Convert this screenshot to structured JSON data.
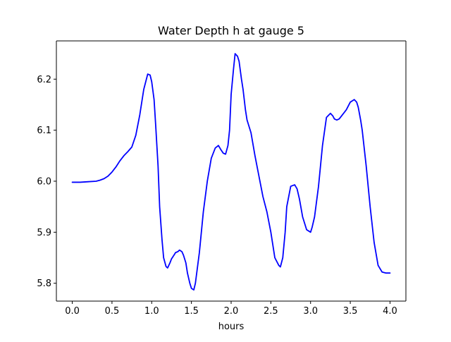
{
  "chart_data": {
    "type": "line",
    "title": "Water Depth h at gauge 5",
    "xlabel": "hours",
    "ylabel": "",
    "xlim": [
      -0.2,
      4.2
    ],
    "ylim": [
      5.765,
      6.275
    ],
    "xticks": [
      0.0,
      0.5,
      1.0,
      1.5,
      2.0,
      2.5,
      3.0,
      3.5,
      4.0
    ],
    "xtick_labels": [
      "0.0",
      "0.5",
      "1.0",
      "1.5",
      "2.0",
      "2.5",
      "3.0",
      "3.5",
      "4.0"
    ],
    "yticks": [
      5.8,
      5.9,
      6.0,
      6.1,
      6.2
    ],
    "ytick_labels": [
      "5.8",
      "5.9",
      "6.0",
      "6.1",
      "6.2"
    ],
    "grid": false,
    "series": [
      {
        "color": "#0000ff",
        "x": [
          0.0,
          0.1,
          0.2,
          0.3,
          0.35,
          0.4,
          0.45,
          0.5,
          0.55,
          0.6,
          0.65,
          0.7,
          0.75,
          0.8,
          0.85,
          0.9,
          0.95,
          0.98,
          1.0,
          1.03,
          1.05,
          1.08,
          1.1,
          1.13,
          1.15,
          1.18,
          1.2,
          1.23,
          1.25,
          1.28,
          1.3,
          1.33,
          1.35,
          1.38,
          1.4,
          1.43,
          1.45,
          1.48,
          1.5,
          1.53,
          1.55,
          1.6,
          1.65,
          1.7,
          1.75,
          1.8,
          1.84,
          1.87,
          1.9,
          1.93,
          1.96,
          1.98,
          2.0,
          2.03,
          2.05,
          2.08,
          2.1,
          2.13,
          2.15,
          2.18,
          2.2,
          2.25,
          2.3,
          2.35,
          2.4,
          2.45,
          2.5,
          2.55,
          2.6,
          2.62,
          2.65,
          2.68,
          2.7,
          2.75,
          2.8,
          2.83,
          2.86,
          2.9,
          2.95,
          3.0,
          3.02,
          3.05,
          3.1,
          3.15,
          3.2,
          3.25,
          3.28,
          3.3,
          3.33,
          3.36,
          3.4,
          3.45,
          3.5,
          3.55,
          3.58,
          3.6,
          3.63,
          3.65,
          3.7,
          3.75,
          3.8,
          3.85,
          3.9,
          3.95,
          4.0
        ],
        "y": [
          5.998,
          5.998,
          5.999,
          6.0,
          6.002,
          6.005,
          6.01,
          6.018,
          6.028,
          6.04,
          6.05,
          6.058,
          6.067,
          6.09,
          6.13,
          6.18,
          6.21,
          6.208,
          6.195,
          6.16,
          6.11,
          6.03,
          5.95,
          5.885,
          5.85,
          5.833,
          5.83,
          5.84,
          5.848,
          5.855,
          5.86,
          5.862,
          5.865,
          5.862,
          5.855,
          5.84,
          5.82,
          5.8,
          5.79,
          5.787,
          5.8,
          5.86,
          5.94,
          6.0,
          6.045,
          6.065,
          6.07,
          6.062,
          6.055,
          6.053,
          6.07,
          6.1,
          6.17,
          6.22,
          6.25,
          6.245,
          6.235,
          6.2,
          6.18,
          6.14,
          6.12,
          6.095,
          6.05,
          6.01,
          5.97,
          5.94,
          5.9,
          5.85,
          5.835,
          5.832,
          5.85,
          5.9,
          5.95,
          5.99,
          5.993,
          5.985,
          5.965,
          5.93,
          5.905,
          5.9,
          5.91,
          5.93,
          5.99,
          6.07,
          6.125,
          6.133,
          6.128,
          6.122,
          6.12,
          6.122,
          6.13,
          6.14,
          6.155,
          6.16,
          6.155,
          6.145,
          6.12,
          6.1,
          6.03,
          5.95,
          5.88,
          5.835,
          5.822,
          5.82,
          5.82
        ]
      }
    ]
  }
}
